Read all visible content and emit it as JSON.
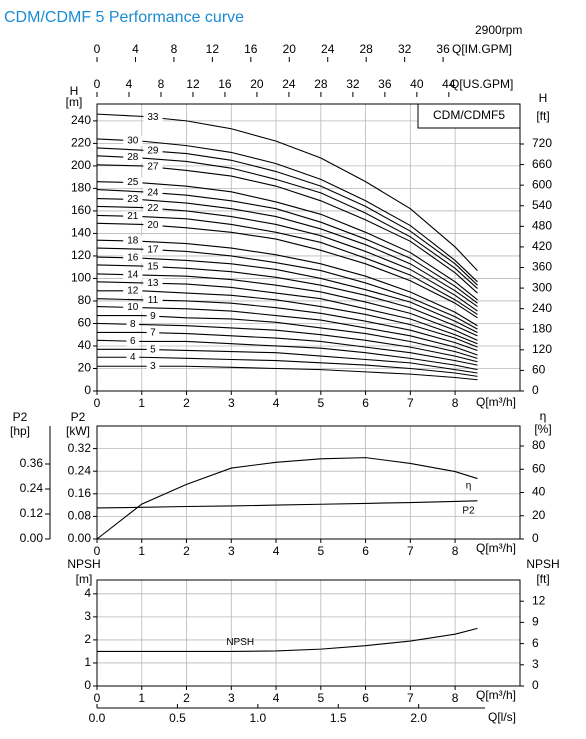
{
  "header": {
    "title": "CDM/CDMF 5 Performance curve",
    "speed": "2900rpm"
  },
  "chart_data": [
    {
      "type": "line",
      "model": "CDM/CDMF5",
      "xlabel": "Q[m³/h]",
      "ylabel": "H",
      "yunit": "[m]",
      "y2label": "H",
      "y2unit": "[ft]",
      "grid": true,
      "x": [
        0,
        1,
        2,
        3,
        4,
        5,
        6,
        7,
        8,
        8.5
      ],
      "xlim": [
        0,
        9.45
      ],
      "xticks": [
        0,
        1,
        2,
        3,
        4,
        5,
        6,
        7,
        8
      ],
      "ylim": [
        0,
        255
      ],
      "yticks": [
        0,
        20,
        40,
        60,
        80,
        100,
        120,
        140,
        160,
        180,
        200,
        220,
        240
      ],
      "y2lim": [
        0,
        836.6
      ],
      "y2ticks": [
        0,
        60,
        120,
        180,
        240,
        300,
        360,
        420,
        480,
        540,
        600,
        660,
        720
      ],
      "top_axes": [
        {
          "label": "Q[IM.GPM]",
          "lim": [
            0,
            44
          ],
          "ticks": [
            0,
            4,
            8,
            12,
            16,
            20,
            24,
            28,
            32,
            36
          ]
        },
        {
          "label": "Q[US.GPM]",
          "lim": [
            0,
            52.9
          ],
          "ticks": [
            0,
            4,
            8,
            12,
            16,
            20,
            24,
            28,
            32,
            36,
            40,
            44
          ]
        }
      ],
      "series": [
        {
          "name": "33",
          "color": "#000000",
          "values": [
            246,
            244,
            240,
            233,
            222,
            207,
            186,
            162,
            128,
            107
          ]
        },
        {
          "name": "30",
          "color": "#000000",
          "values": [
            224,
            222,
            218,
            212,
            202,
            188,
            169,
            147,
            116,
            97
          ]
        },
        {
          "name": "29",
          "color": "#000000",
          "values": [
            216,
            214,
            211,
            205,
            195,
            182,
            164,
            142,
            113,
            94
          ]
        },
        {
          "name": "28",
          "color": "#000000",
          "values": [
            209,
            207,
            204,
            198,
            188,
            176,
            158,
            137,
            109,
            91
          ]
        },
        {
          "name": "27",
          "color": "#000000",
          "values": [
            201,
            200,
            196,
            191,
            182,
            169,
            152,
            133,
            105,
            87
          ]
        },
        {
          "name": "25",
          "color": "#000000",
          "values": [
            186,
            185,
            182,
            177,
            168,
            157,
            141,
            123,
            97,
            81
          ]
        },
        {
          "name": "24",
          "color": "#000000",
          "values": [
            179,
            177,
            174,
            169,
            162,
            150,
            135,
            118,
            93,
            78
          ]
        },
        {
          "name": "23",
          "color": "#000000",
          "values": [
            171,
            170,
            167,
            162,
            155,
            144,
            130,
            113,
            89,
            75
          ]
        },
        {
          "name": "22",
          "color": "#000000",
          "values": [
            164,
            163,
            160,
            155,
            148,
            138,
            124,
            108,
            85,
            71
          ]
        },
        {
          "name": "21",
          "color": "#000000",
          "values": [
            156,
            155,
            153,
            148,
            141,
            132,
            118,
            103,
            81,
            68
          ]
        },
        {
          "name": "20",
          "color": "#000000",
          "values": [
            149,
            148,
            145,
            141,
            135,
            125,
            113,
            98,
            78,
            65
          ]
        },
        {
          "name": "18",
          "color": "#000000",
          "values": [
            134,
            133,
            131,
            127,
            121,
            113,
            102,
            88,
            70,
            58
          ]
        },
        {
          "name": "17",
          "color": "#000000",
          "values": [
            127,
            126,
            124,
            120,
            114,
            107,
            96,
            83,
            66,
            55
          ]
        },
        {
          "name": "16",
          "color": "#000000",
          "values": [
            119,
            118,
            116,
            113,
            108,
            100,
            90,
            79,
            62,
            52
          ]
        },
        {
          "name": "15",
          "color": "#000000",
          "values": [
            112,
            111,
            109,
            106,
            101,
            94,
            85,
            74,
            58,
            49
          ]
        },
        {
          "name": "14",
          "color": "#000000",
          "values": [
            104,
            103,
            102,
            99,
            94,
            88,
            79,
            69,
            54,
            45
          ]
        },
        {
          "name": "13",
          "color": "#000000",
          "values": [
            97,
            96,
            95,
            92,
            87,
            82,
            73,
            64,
            50,
            42
          ]
        },
        {
          "name": "12",
          "color": "#000000",
          "values": [
            89,
            89,
            87,
            85,
            81,
            75,
            68,
            59,
            47,
            39
          ]
        },
        {
          "name": "11",
          "color": "#000000",
          "values": [
            82,
            81,
            80,
            78,
            74,
            69,
            62,
            54,
            43,
            36
          ]
        },
        {
          "name": "10",
          "color": "#000000",
          "values": [
            75,
            74,
            73,
            71,
            67,
            63,
            56,
            49,
            39,
            32
          ]
        },
        {
          "name": "9",
          "color": "#000000",
          "values": [
            67,
            67,
            65,
            64,
            61,
            56,
            51,
            44,
            35,
            29
          ]
        },
        {
          "name": "8",
          "color": "#000000",
          "values": [
            60,
            59,
            58,
            56,
            54,
            50,
            45,
            39,
            31,
            26
          ]
        },
        {
          "name": "7",
          "color": "#000000",
          "values": [
            52,
            52,
            51,
            49,
            47,
            44,
            39,
            34,
            27,
            23
          ]
        },
        {
          "name": "6",
          "color": "#000000",
          "values": [
            45,
            44,
            44,
            42,
            40,
            38,
            34,
            29,
            23,
            19
          ]
        },
        {
          "name": "5",
          "color": "#000000",
          "values": [
            37,
            37,
            36,
            35,
            34,
            31,
            28,
            25,
            19,
            16
          ]
        },
        {
          "name": "4",
          "color": "#000000",
          "values": [
            30,
            30,
            29,
            28,
            27,
            25,
            23,
            20,
            16,
            13
          ]
        },
        {
          "name": "3",
          "color": "#000000",
          "values": [
            22,
            22,
            22,
            21,
            20,
            19,
            17,
            15,
            12,
            10
          ]
        }
      ]
    },
    {
      "type": "line",
      "xlabel": "Q[m³/h]",
      "ylabel": "P2",
      "yunit": "[kW]",
      "y2label": "η",
      "y2unit": "[%]",
      "y3label": "P2",
      "y3unit": "[hp]",
      "grid": true,
      "x": [
        0,
        1,
        2,
        3,
        4,
        5,
        6,
        7,
        8,
        8.5
      ],
      "xlim": [
        0,
        9.45
      ],
      "xticks": [
        0,
        1,
        2,
        3,
        4,
        5,
        6,
        7,
        8
      ],
      "ylim": [
        0,
        0.4
      ],
      "yticks": [
        {
          "value": 0,
          "label": "0.00"
        },
        0.08,
        0.16,
        0.24,
        0.32
      ],
      "y2lim": [
        0,
        97.2
      ],
      "y2ticks": [
        0,
        20,
        40,
        60,
        80
      ],
      "y3lim": [
        0,
        0.5424
      ],
      "y3ticks": [
        {
          "value": 0,
          "label": "0.00"
        },
        0.12,
        0.24,
        0.36
      ],
      "series": [
        {
          "name": "η",
          "color": "#000000",
          "axis": "y2",
          "values": [
            0,
            30,
            47,
            61,
            66,
            69,
            70,
            65,
            58,
            52
          ]
        },
        {
          "name": "P2",
          "color": "#000000",
          "values": [
            0.11,
            0.112,
            0.115,
            0.117,
            0.12,
            0.123,
            0.126,
            0.129,
            0.133,
            0.135
          ]
        }
      ]
    },
    {
      "type": "line",
      "xlabel": "Q[m³/h]",
      "ylabel": "NPSH",
      "yunit": "[m]",
      "y2label": "NPSH",
      "y2unit": "[ft]",
      "grid": true,
      "x": [
        0,
        1,
        2,
        3,
        4,
        5,
        6,
        7,
        8,
        8.5
      ],
      "xlim": [
        0,
        9.45
      ],
      "xticks": [
        0,
        1,
        2,
        3,
        4,
        5,
        6,
        7,
        8
      ],
      "ylim": [
        0,
        4.6
      ],
      "yticks": [
        0,
        1,
        2,
        3,
        4
      ],
      "y2lim": [
        0,
        15
      ],
      "y2ticks": [
        0,
        3,
        6,
        9,
        12
      ],
      "bottom_axis": {
        "label": "Q[l/s]",
        "lim": [
          0,
          2.63
        ],
        "ticks": [
          {
            "value": 0,
            "label": "0.0"
          },
          0.5,
          {
            "value": 1,
            "label": "1.0"
          },
          1.5,
          {
            "value": 2,
            "label": "2.0"
          }
        ]
      },
      "series": [
        {
          "name": "NPSH",
          "color": "#000000",
          "values": [
            1.5,
            1.5,
            1.5,
            1.5,
            1.52,
            1.6,
            1.75,
            1.95,
            2.25,
            2.5
          ]
        }
      ]
    }
  ]
}
